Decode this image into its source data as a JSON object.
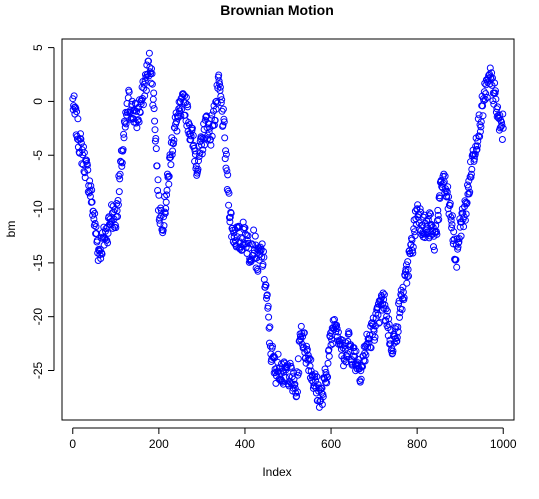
{
  "chart_data": {
    "type": "scatter",
    "title": "Brownian Motion",
    "xlabel": "Index",
    "ylabel": "bm",
    "xlim": [
      -25,
      1025
    ],
    "ylim": [
      -29.6,
      5.8
    ],
    "x_ticks": [
      0,
      200,
      400,
      600,
      800,
      1000
    ],
    "x_tick_labels": [
      "0",
      "200",
      "400",
      "600",
      "800",
      "1000"
    ],
    "y_ticks": [
      5,
      0,
      -5,
      -10,
      -15,
      -20,
      -25
    ],
    "y_tick_labels": [
      "5",
      "0",
      "-5",
      "-10",
      "-15",
      "-20",
      "-25"
    ],
    "marker": "open circle",
    "point_color": "#0000ff",
    "grid": false,
    "legend": "none",
    "series": [
      {
        "x": [
          0,
          10,
          20,
          30,
          40,
          50,
          60,
          70,
          80,
          90,
          100,
          110,
          120,
          130,
          140,
          150,
          160,
          170,
          180,
          190,
          200,
          210,
          220,
          230,
          240,
          250,
          260,
          270,
          280,
          290,
          300,
          310,
          320,
          330,
          340,
          350,
          360,
          370,
          380,
          390,
          400,
          410,
          420,
          430,
          440,
          450,
          460,
          470,
          480,
          490,
          500,
          510,
          520,
          530,
          540,
          550,
          560,
          570,
          580,
          590,
          600,
          610,
          620,
          630,
          640,
          650,
          660,
          670,
          680,
          690,
          700,
          710,
          720,
          730,
          740,
          750,
          760,
          770,
          780,
          790,
          800,
          810,
          820,
          830,
          840,
          850,
          860,
          870,
          880,
          890,
          900,
          910,
          920,
          930,
          940,
          950,
          960,
          970,
          980,
          990,
          1000
        ],
        "y": [
          0,
          -2.5,
          -4.5,
          -6,
          -8,
          -11,
          -14,
          -13,
          -12,
          -10.5,
          -11,
          -7,
          -3,
          0,
          -1,
          -1.5,
          0,
          2,
          3.8,
          -1,
          -10,
          -11,
          -8,
          -4,
          -2,
          -1,
          0,
          -2,
          -4,
          -6,
          -4,
          -2,
          -3,
          -1,
          1.5,
          -2,
          -8,
          -12,
          -12.5,
          -13,
          -12,
          -14,
          -13,
          -15,
          -14,
          -18,
          -23,
          -25,
          -24.5,
          -25.5,
          -25,
          -26,
          -27,
          -21,
          -23,
          -24,
          -26,
          -27,
          -27.5,
          -25,
          -22,
          -20,
          -22,
          -24,
          -22,
          -23.5,
          -24,
          -25,
          -23,
          -22,
          -21,
          -20,
          -18.5,
          -20,
          -22.5,
          -22,
          -19,
          -17.5,
          -15,
          -13,
          -10,
          -11,
          -12,
          -11.5,
          -13,
          -10,
          -7,
          -9,
          -11,
          -15,
          -11.5,
          -10.5,
          -8,
          -5,
          -3,
          -1,
          1,
          2,
          0.5,
          -2,
          -2.5
        ]
      }
    ]
  }
}
